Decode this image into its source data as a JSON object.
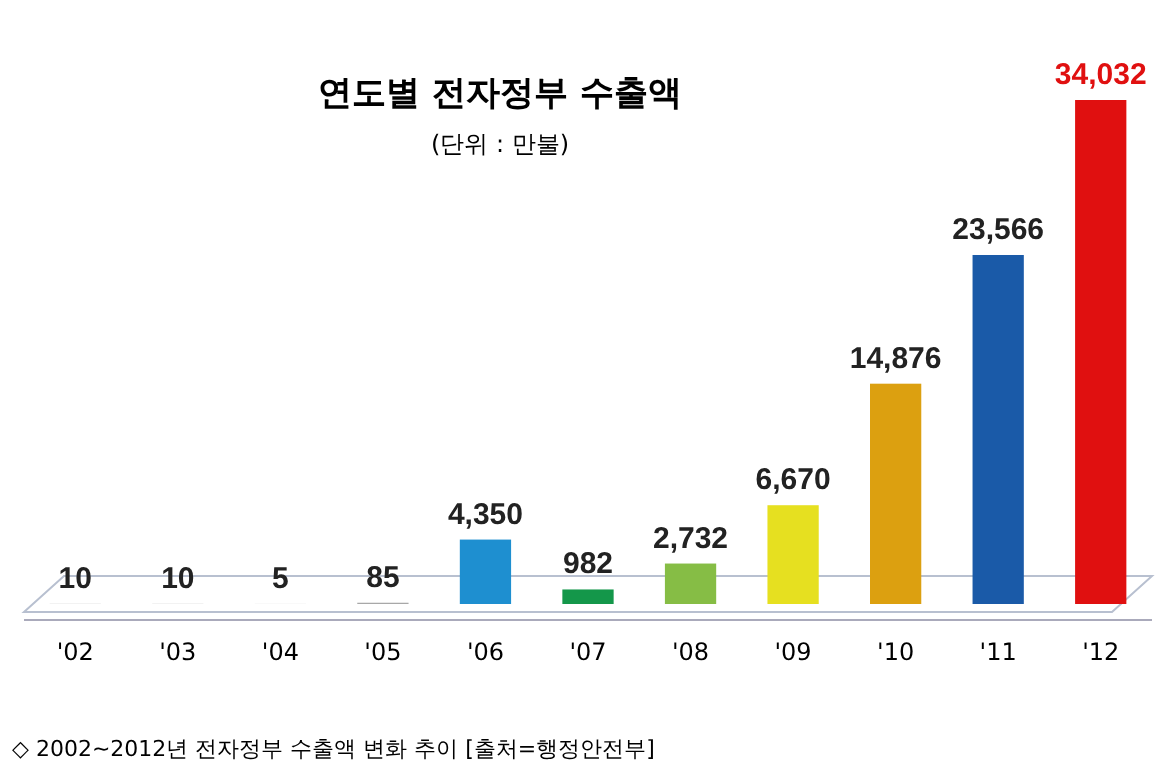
{
  "chart_data": {
    "type": "bar",
    "title": "연도별 전자정부 수출액",
    "subtitle": "(단위 : 만불)",
    "categories": [
      "'02",
      "'03",
      "'04",
      "'05",
      "'06",
      "'07",
      "'08",
      "'09",
      "'10",
      "'11",
      "'12"
    ],
    "values": [
      10,
      10,
      5,
      85,
      4350,
      982,
      2732,
      6670,
      14876,
      23566,
      34032
    ],
    "colors": [
      "#a8a8a8",
      "#a8a8a8",
      "#a8a8a8",
      "#a8a8a8",
      "#1e8fd0",
      "#14974a",
      "#86bd45",
      "#e6e020",
      "#dca010",
      "#1a5aa8",
      "#e01010"
    ],
    "value_labels": [
      "10",
      "10",
      "5",
      "85",
      "4,350",
      "982",
      "2,732",
      "6,670",
      "14,876",
      "23,566",
      "34,032"
    ],
    "annotations": [
      "◇ 2002~2012년 전자정부 수출액 변화 추이 [출처=행정안전부]"
    ]
  }
}
